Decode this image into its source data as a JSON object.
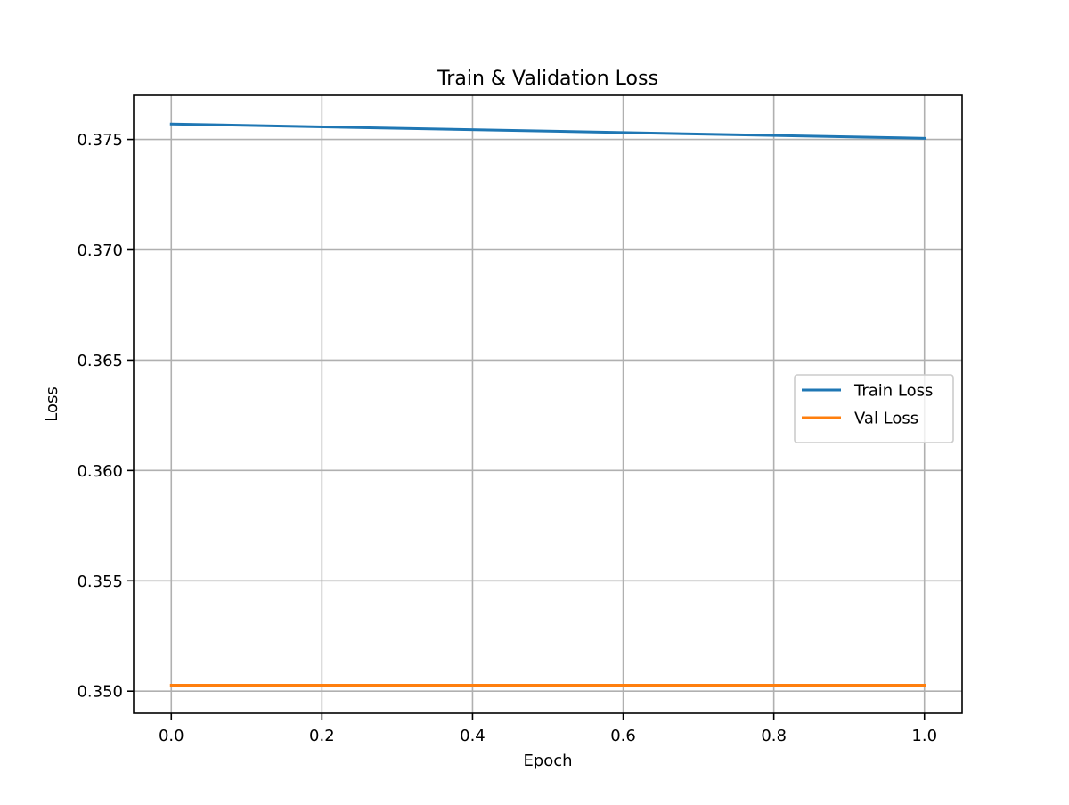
{
  "chart_data": {
    "type": "line",
    "title": "Train & Validation Loss",
    "xlabel": "Epoch",
    "ylabel": "Loss",
    "xlim": [
      -0.05,
      1.05
    ],
    "ylim": [
      0.349,
      0.377
    ],
    "xticks": [
      0.0,
      0.2,
      0.4,
      0.6,
      0.8,
      1.0
    ],
    "xtick_labels": [
      "0.0",
      "0.2",
      "0.4",
      "0.6",
      "0.8",
      "1.0"
    ],
    "yticks": [
      0.35,
      0.355,
      0.36,
      0.365,
      0.37,
      0.375
    ],
    "ytick_labels": [
      "0.350",
      "0.355",
      "0.360",
      "0.365",
      "0.370",
      "0.375"
    ],
    "grid": true,
    "legend_position": "center-right",
    "series": [
      {
        "name": "Train Loss",
        "color": "#1f77b4",
        "x": [
          0,
          1
        ],
        "y": [
          0.3757,
          0.37505
        ]
      },
      {
        "name": "Val Loss",
        "color": "#ff7f0e",
        "x": [
          0,
          1
        ],
        "y": [
          0.35027,
          0.35027
        ]
      }
    ]
  }
}
